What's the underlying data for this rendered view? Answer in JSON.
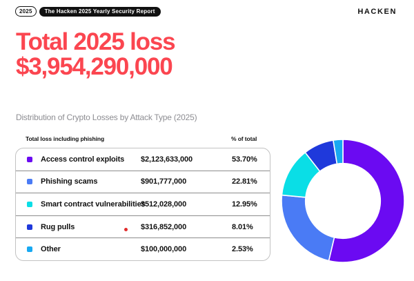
{
  "header": {
    "year_badge": "2025",
    "report_badge": "The Hacken 2025 Yearly Security Report",
    "logo_text": "HACKEN"
  },
  "hero": {
    "title_line1": "Total 2025 loss",
    "title_line2": "$3,954,290,000",
    "accent_color": "#FB4650"
  },
  "section": {
    "subtitle": "Distribution of Crypto Losses by Attack Type (2025)"
  },
  "table": {
    "left_header": "Total loss including phishing",
    "right_header": "% of total",
    "rows": [
      {
        "label": "Access control exploits",
        "amount": "$2,123,633,000",
        "percent": "53.70%",
        "color": "#6B0AF2"
      },
      {
        "label": "Phishing scams",
        "amount": "$901,777,000",
        "percent": "22.81%",
        "color": "#4A7BF5"
      },
      {
        "label": "Smart contract vulnerabilities",
        "amount": "$512,028,000",
        "percent": "12.95%",
        "color": "#0ADEE6"
      },
      {
        "label": "Rug pulls",
        "amount": "$316,852,000",
        "percent": "8.01%",
        "color": "#1F39DB"
      },
      {
        "label": "Other",
        "amount": "$100,000,000",
        "percent": "2.53%",
        "color": "#18A9F2"
      }
    ]
  },
  "chart_data": {
    "type": "pie",
    "subtype": "donut",
    "title": "Distribution of Crypto Losses by Attack Type (2025)",
    "categories": [
      "Access control exploits",
      "Phishing scams",
      "Smart contract vulnerabilities",
      "Rug pulls",
      "Other"
    ],
    "values": [
      2123633000,
      901777000,
      512028000,
      316852000,
      100000000
    ],
    "percents": [
      53.7,
      22.81,
      12.95,
      8.01,
      2.53
    ],
    "colors": [
      "#6B0AF2",
      "#4A7BF5",
      "#0ADEE6",
      "#1F39DB",
      "#18A9F2"
    ],
    "total_label": "Total 2025 loss",
    "total_value": 3954290000,
    "start_angle_deg": 0,
    "direction": "clockwise",
    "inner_radius_ratio": 0.61,
    "legend_position": "table-left",
    "gap_stroke_color": "#ffffff"
  }
}
